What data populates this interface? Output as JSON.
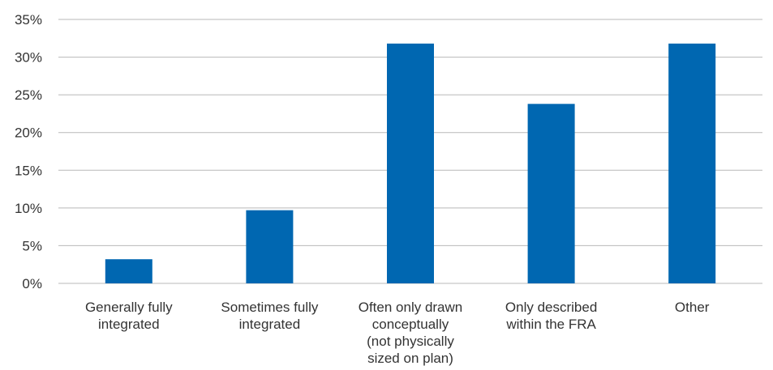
{
  "chart_data": {
    "type": "bar",
    "categories": [
      [
        "Generally fully",
        "integrated"
      ],
      [
        "Sometimes fully",
        "integrated"
      ],
      [
        "Often only drawn",
        "conceptually",
        "(not physically",
        "sized on plan)"
      ],
      [
        "Only described",
        "within the FRA"
      ],
      [
        "Other"
      ]
    ],
    "values": [
      3.2,
      9.7,
      31.8,
      23.8,
      31.8
    ],
    "yticks": [
      "0%",
      "5%",
      "10%",
      "15%",
      "20%",
      "25%",
      "30%",
      "35%"
    ],
    "ylim": [
      0,
      35
    ],
    "ytick_step": 5,
    "grid": true,
    "colors": {
      "bar": "#0067b1",
      "grid": "#b8b8b8",
      "text": "#333333"
    }
  }
}
